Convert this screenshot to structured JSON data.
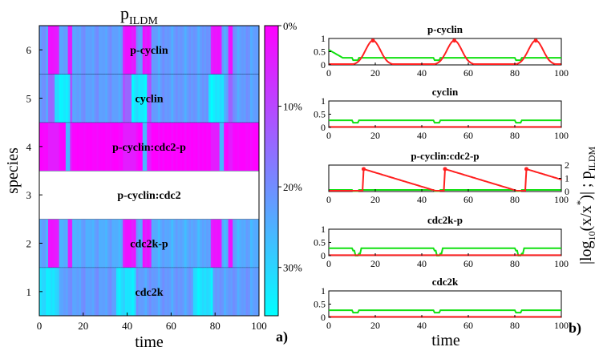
{
  "chart_data": [
    {
      "type": "heatmap",
      "panel_label": "a)",
      "title_main": "p",
      "title_sub": "ILDM",
      "xlabel": "time",
      "ylabel": "species",
      "xlim": [
        0,
        100
      ],
      "x_ticks": [
        "0",
        "20",
        "40",
        "60",
        "80",
        "100"
      ],
      "y_ticks": [
        "1",
        "2",
        "3",
        "4",
        "5",
        "6"
      ],
      "rows": [
        {
          "index": 1,
          "label": "cdc2k",
          "base_pct": 22,
          "kind": "cdc2k"
        },
        {
          "index": 2,
          "label": "cdc2k-p",
          "base_pct": 24,
          "kind": "bands"
        },
        {
          "index": 3,
          "label": "p-cyclin:cdc2",
          "base_pct": null,
          "kind": "blank"
        },
        {
          "index": 4,
          "label": "p-cyclin:cdc2-p",
          "base_pct": 0,
          "kind": "inverse"
        },
        {
          "index": 5,
          "label": "cyclin",
          "base_pct": 22,
          "kind": "cyclin"
        },
        {
          "index": 6,
          "label": "p-cyclin",
          "base_pct": 22,
          "kind": "bands"
        }
      ],
      "magenta_bands_time": [
        [
          4,
          9
        ],
        [
          13,
          15
        ],
        [
          38,
          44
        ],
        [
          47,
          51
        ],
        [
          78,
          83
        ],
        [
          86,
          88
        ]
      ],
      "colorbar": {
        "colors": [
          "#ff00ff",
          "#00ffff"
        ],
        "range_pct": [
          0,
          36
        ],
        "tick_labels": [
          "0%",
          "10%",
          "20%",
          "30%"
        ],
        "tick_values": [
          0,
          10,
          20,
          30
        ]
      }
    },
    {
      "type": "line",
      "panel_label": "b)",
      "xlabel": "time",
      "right_ylabel_a": "|log",
      "right_ylabel_b": "10",
      "right_ylabel_c": "(x/x",
      "right_ylabel_d": "*",
      "right_ylabel_e": ")| ; p",
      "right_ylabel_f": "ILDM",
      "x_ticks": [
        "0",
        "20",
        "40",
        "60",
        "80",
        "100"
      ],
      "series_colors": {
        "log_deviation": "#ff2020",
        "p_ildm": "#10e010"
      },
      "subplots": [
        {
          "title": "p-cyclin",
          "ylim": [
            0,
            1
          ],
          "y_ticks": [
            "0",
            "0.5",
            "1"
          ],
          "tick_side": "left",
          "red_peaks": [
            [
              19,
              0.92
            ],
            [
              54,
              0.92
            ],
            [
              89,
              0.92
            ]
          ],
          "green_level": 0.27
        },
        {
          "title": "cyclin",
          "ylim": [
            0,
            1
          ],
          "y_ticks": [
            "0",
            "0.5",
            "1"
          ],
          "tick_side": "left",
          "red_peaks": [],
          "green_level": 0.27
        },
        {
          "title": "p-cyclin:cdc2-p",
          "ylim": [
            0,
            2
          ],
          "y_ticks": [
            "0",
            "1",
            "2"
          ],
          "tick_side": "right",
          "red_peaks": [
            [
              15,
              1.7
            ],
            [
              50,
              1.7
            ],
            [
              85,
              1.7
            ]
          ],
          "green_level": 0.12
        },
        {
          "title": "cdc2k-p",
          "ylim": [
            0,
            1
          ],
          "y_ticks": [
            "0",
            "0.5",
            "1"
          ],
          "tick_side": "left",
          "red_peaks": [],
          "green_level": 0.28
        },
        {
          "title": "cdc2k",
          "ylim": [
            0,
            1
          ],
          "y_ticks": [
            "0",
            "0.5",
            "1"
          ],
          "tick_side": "left",
          "red_peaks": [],
          "green_level": 0.27
        }
      ]
    }
  ]
}
